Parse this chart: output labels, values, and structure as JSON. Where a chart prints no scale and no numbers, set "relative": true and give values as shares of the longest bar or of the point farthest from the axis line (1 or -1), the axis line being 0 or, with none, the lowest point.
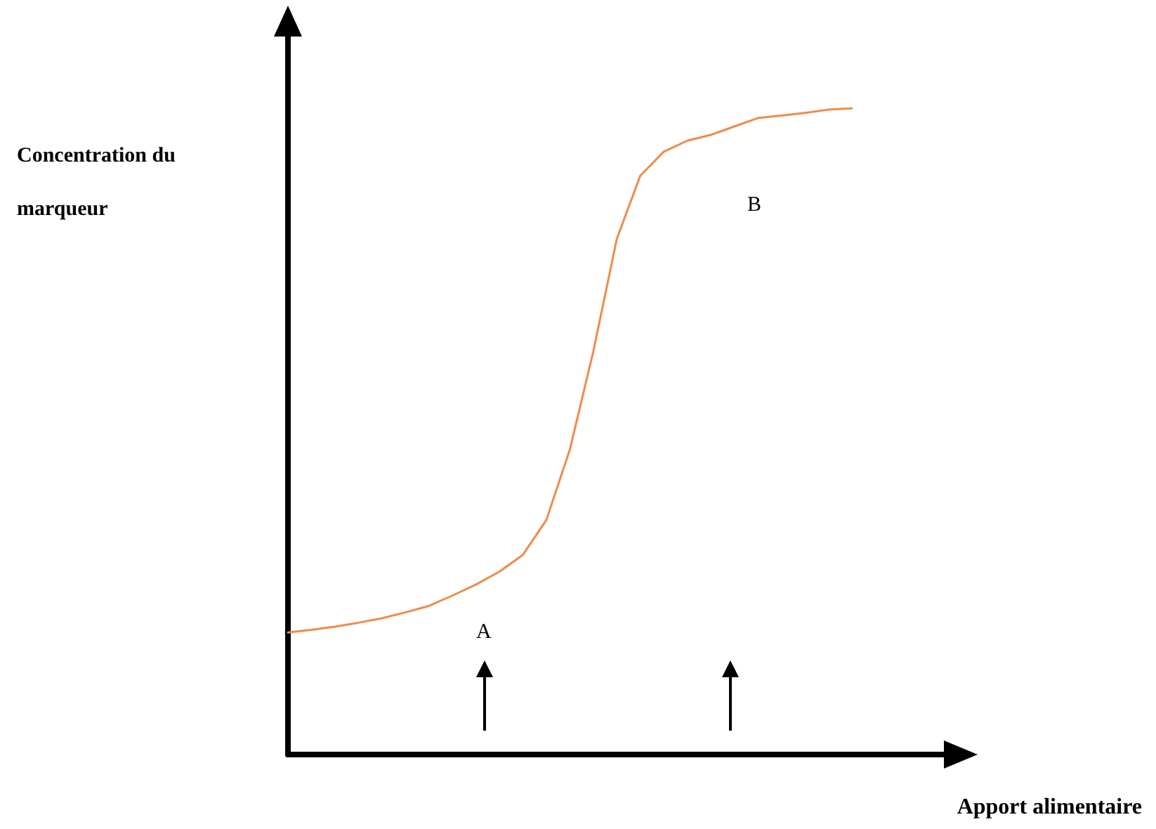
{
  "chart_data": {
    "type": "line",
    "relative": true,
    "xlabel": "Apport alimentaire",
    "ylabel": "Concentration du marqueur",
    "categories": [
      null,
      null,
      null,
      null,
      null,
      null,
      null,
      null,
      null,
      null,
      null,
      null,
      null,
      null,
      null,
      null,
      null,
      null,
      null,
      null,
      null,
      null,
      null,
      null,
      null,
      null,
      null,
      null,
      null,
      null
    ],
    "series": [
      {
        "color": "#f08a4b",
        "values": [
          0.189,
          0.193,
          0.198,
          0.204,
          0.211,
          0.22,
          0.23,
          0.246,
          0.263,
          0.283,
          0.309,
          0.363,
          0.472,
          0.624,
          0.798,
          0.896,
          0.933,
          0.95,
          0.959,
          0.972,
          0.985,
          0.989,
          0.993,
          0.998,
          1,
          null,
          null,
          null,
          null,
          null
        ]
      }
    ],
    "annotations": [
      "A",
      "B"
    ],
    "grid": false,
    "marker": "none",
    "line_style": "solid"
  }
}
